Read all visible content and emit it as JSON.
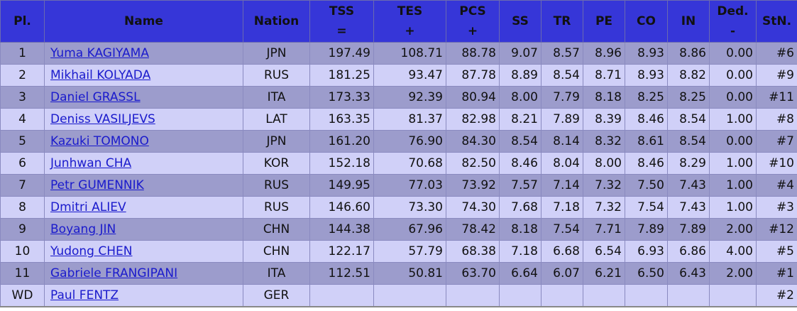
{
  "table": {
    "header": [
      [
        "Pl."
      ],
      [
        "Name"
      ],
      [
        "Nation"
      ],
      [
        "TSS",
        "="
      ],
      [
        "TES",
        "+"
      ],
      [
        "PCS",
        "+"
      ],
      [
        "SS"
      ],
      [
        "TR"
      ],
      [
        "PE"
      ],
      [
        "CO"
      ],
      [
        "IN"
      ],
      [
        "Ded.",
        "-"
      ],
      [
        "StN."
      ]
    ],
    "rows": [
      [
        "1",
        "Yuma KAGIYAMA",
        "JPN",
        "197.49",
        "108.71",
        "88.78",
        "9.07",
        "8.57",
        "8.96",
        "8.93",
        "8.86",
        "0.00",
        "#6"
      ],
      [
        "2",
        "Mikhail KOLYADA",
        "RUS",
        "181.25",
        "93.47",
        "87.78",
        "8.89",
        "8.54",
        "8.71",
        "8.93",
        "8.82",
        "0.00",
        "#9"
      ],
      [
        "3",
        "Daniel GRASSL",
        "ITA",
        "173.33",
        "92.39",
        "80.94",
        "8.00",
        "7.79",
        "8.18",
        "8.25",
        "8.25",
        "0.00",
        "#11"
      ],
      [
        "4",
        "Deniss VASILJEVS",
        "LAT",
        "163.35",
        "81.37",
        "82.98",
        "8.21",
        "7.89",
        "8.39",
        "8.46",
        "8.54",
        "1.00",
        "#8"
      ],
      [
        "5",
        "Kazuki TOMONO",
        "JPN",
        "161.20",
        "76.90",
        "84.30",
        "8.54",
        "8.14",
        "8.32",
        "8.61",
        "8.54",
        "0.00",
        "#7"
      ],
      [
        "6",
        "Junhwan CHA",
        "KOR",
        "152.18",
        "70.68",
        "82.50",
        "8.46",
        "8.04",
        "8.00",
        "8.46",
        "8.29",
        "1.00",
        "#10"
      ],
      [
        "7",
        "Petr GUMENNIK",
        "RUS",
        "149.95",
        "77.03",
        "73.92",
        "7.57",
        "7.14",
        "7.32",
        "7.50",
        "7.43",
        "1.00",
        "#4"
      ],
      [
        "8",
        "Dmitri ALIEV",
        "RUS",
        "146.60",
        "73.30",
        "74.30",
        "7.68",
        "7.18",
        "7.32",
        "7.54",
        "7.43",
        "1.00",
        "#3"
      ],
      [
        "9",
        "Boyang JIN",
        "CHN",
        "144.38",
        "67.96",
        "78.42",
        "8.18",
        "7.54",
        "7.71",
        "7.89",
        "7.89",
        "2.00",
        "#12"
      ],
      [
        "10",
        "Yudong CHEN",
        "CHN",
        "122.17",
        "57.79",
        "68.38",
        "7.18",
        "6.68",
        "6.54",
        "6.93",
        "6.86",
        "4.00",
        "#5"
      ],
      [
        "11",
        "Gabriele FRANGIPANI",
        "ITA",
        "112.51",
        "50.81",
        "63.70",
        "6.64",
        "6.07",
        "6.21",
        "6.50",
        "6.43",
        "2.00",
        "#1"
      ],
      [
        "WD",
        "Paul FENTZ",
        "GER",
        null,
        null,
        null,
        null,
        null,
        null,
        null,
        null,
        null,
        "#2"
      ]
    ]
  }
}
